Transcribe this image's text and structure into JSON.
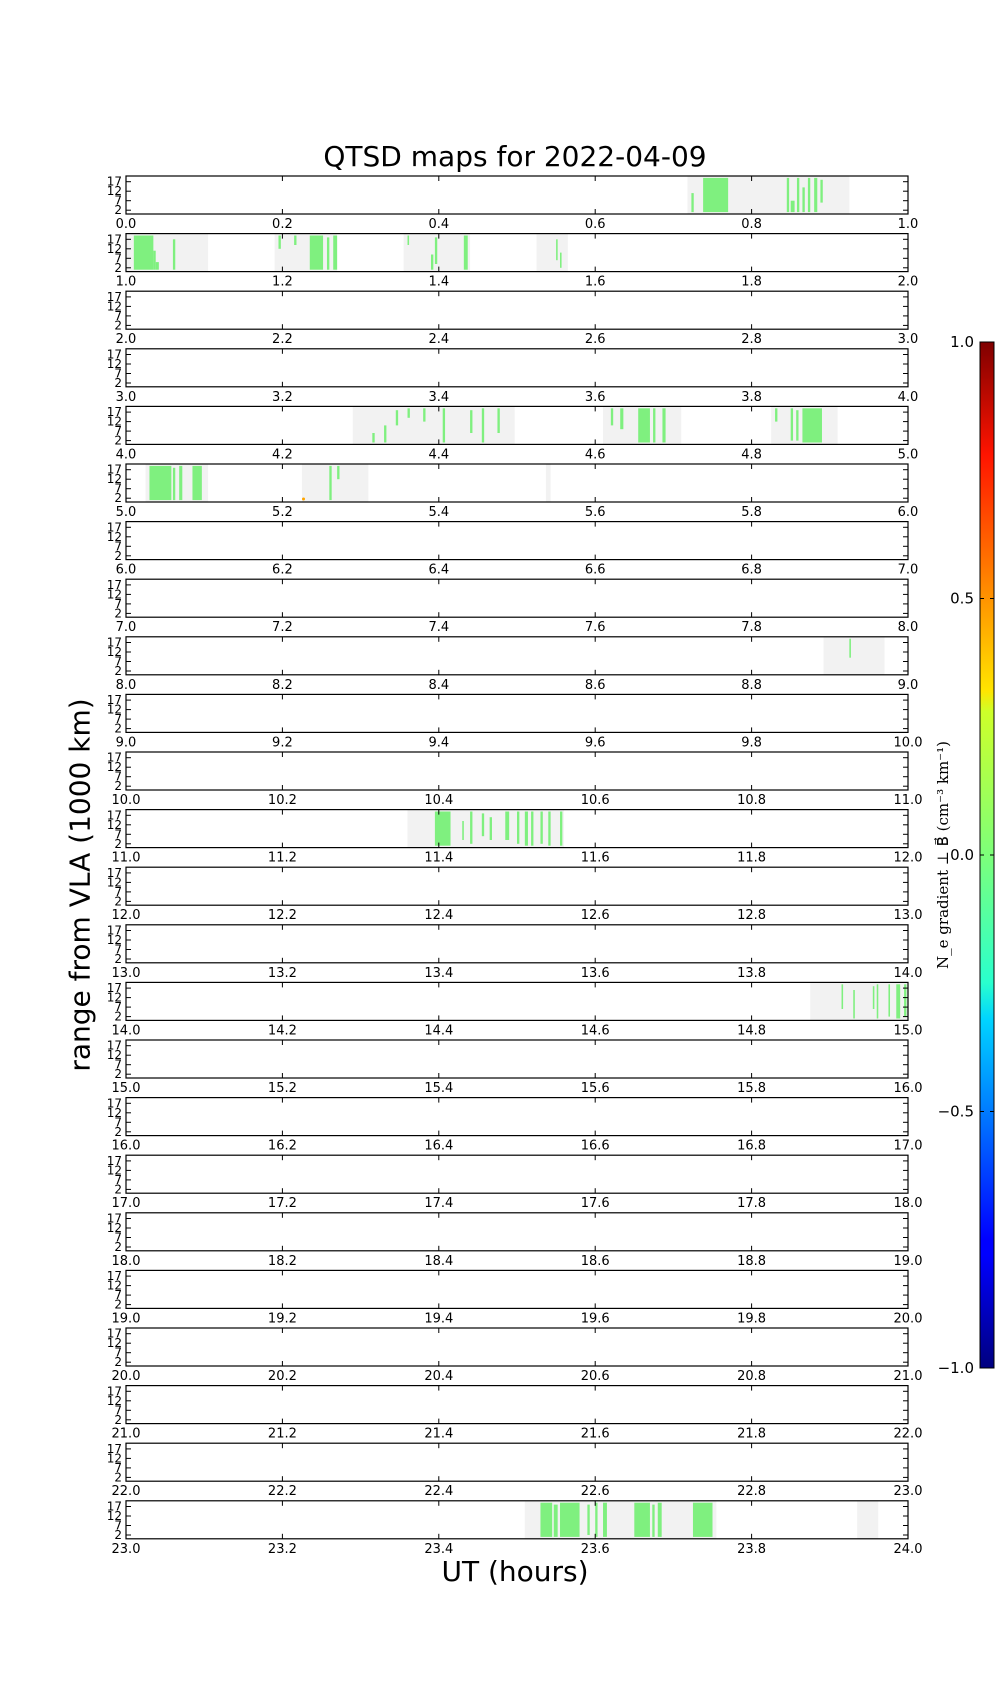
{
  "title": "QTSD maps for 2022-04-09",
  "chart_data": {
    "type": "heatmap",
    "title": "QTSD maps for 2022-04-09",
    "xlabel": "UT (hours)",
    "ylabel": "range from VLA (1000 km)",
    "y_ticks": [
      "17",
      "12",
      "7",
      "2"
    ],
    "ylim": [
      0,
      20
    ],
    "colors": {
      "coverage": "#f2f2f2",
      "near_zero": "#7ff07f",
      "dot": "#ffa500"
    },
    "colorbar": {
      "label": "N_e gradient ⊥ B⃗ (cm⁻³ km⁻¹)",
      "vmin": -1.0,
      "vmax": 1.0,
      "ticks": [
        "1.0",
        "0.5",
        "0.0",
        "−0.5",
        "−1.0"
      ]
    },
    "panels": [
      {
        "start": 0,
        "end": 1,
        "ticks": [
          "0.0",
          "0.2",
          "0.4",
          "0.6",
          "0.8",
          "1.0"
        ],
        "coverage": [
          [
            0.718,
            0.925
          ]
        ],
        "segments": [
          [
            0.723,
            0.726,
            0.05,
            0.55
          ],
          [
            0.738,
            0.77,
            0.05,
            0.95
          ],
          [
            0.845,
            0.848,
            0.05,
            0.95
          ],
          [
            0.85,
            0.855,
            0.05,
            0.35
          ],
          [
            0.858,
            0.861,
            0.05,
            0.95
          ],
          [
            0.865,
            0.868,
            0.05,
            0.7
          ],
          [
            0.872,
            0.875,
            0.05,
            0.95
          ],
          [
            0.88,
            0.884,
            0.05,
            0.95
          ],
          [
            0.888,
            0.891,
            0.3,
            0.9
          ]
        ]
      },
      {
        "start": 1,
        "end": 2,
        "ticks": [
          "1.0",
          "1.2",
          "1.4",
          "1.6",
          "1.8",
          "2.0"
        ],
        "coverage": [
          [
            1.0,
            1.105
          ],
          [
            1.19,
            1.27
          ],
          [
            1.355,
            1.44
          ],
          [
            1.525,
            1.565
          ]
        ],
        "segments": [
          [
            1.01,
            1.035,
            0.05,
            0.95
          ],
          [
            1.035,
            1.038,
            0.05,
            0.55
          ],
          [
            1.038,
            1.042,
            0.05,
            0.25
          ],
          [
            1.06,
            1.063,
            0.05,
            0.85
          ],
          [
            1.195,
            1.198,
            0.6,
            0.95
          ],
          [
            1.215,
            1.218,
            0.7,
            0.95
          ],
          [
            1.235,
            1.252,
            0.05,
            0.95
          ],
          [
            1.257,
            1.26,
            0.05,
            0.9
          ],
          [
            1.265,
            1.27,
            0.05,
            0.95
          ],
          [
            1.36,
            1.362,
            0.7,
            0.95
          ],
          [
            1.39,
            1.393,
            0.05,
            0.45
          ],
          [
            1.395,
            1.398,
            0.2,
            0.9
          ],
          [
            1.432,
            1.437,
            0.05,
            0.95
          ],
          [
            1.55,
            1.552,
            0.3,
            0.85
          ],
          [
            1.555,
            1.557,
            0.1,
            0.5
          ]
        ]
      },
      {
        "start": 2,
        "end": 3,
        "ticks": [
          "2.0",
          "2.2",
          "2.4",
          "2.6",
          "2.8",
          "3.0"
        ],
        "coverage": [],
        "segments": []
      },
      {
        "start": 3,
        "end": 4,
        "ticks": [
          "3.0",
          "3.2",
          "3.4",
          "3.6",
          "3.8",
          "4.0"
        ],
        "coverage": [],
        "segments": []
      },
      {
        "start": 4,
        "end": 5,
        "ticks": [
          "4.0",
          "4.2",
          "4.4",
          "4.6",
          "4.8",
          "5.0"
        ],
        "coverage": [
          [
            4.29,
            4.497
          ],
          [
            4.61,
            4.71
          ],
          [
            4.825,
            4.91
          ]
        ],
        "segments": [
          [
            4.315,
            4.318,
            0.05,
            0.3
          ],
          [
            4.33,
            4.333,
            0.05,
            0.5
          ],
          [
            4.345,
            4.348,
            0.5,
            0.9
          ],
          [
            4.36,
            4.363,
            0.7,
            0.95
          ],
          [
            4.38,
            4.383,
            0.6,
            0.95
          ],
          [
            4.405,
            4.408,
            0.05,
            0.95
          ],
          [
            4.44,
            4.443,
            0.3,
            0.9
          ],
          [
            4.455,
            4.458,
            0.05,
            0.95
          ],
          [
            4.475,
            4.478,
            0.3,
            0.95
          ],
          [
            4.62,
            4.623,
            0.5,
            0.95
          ],
          [
            4.632,
            4.636,
            0.4,
            0.95
          ],
          [
            4.655,
            4.67,
            0.05,
            0.95
          ],
          [
            4.674,
            4.677,
            0.05,
            0.95
          ],
          [
            4.686,
            4.69,
            0.05,
            0.95
          ],
          [
            4.83,
            4.833,
            0.6,
            0.95
          ],
          [
            4.85,
            4.853,
            0.1,
            0.95
          ],
          [
            4.857,
            4.86,
            0.1,
            0.9
          ],
          [
            4.865,
            4.89,
            0.05,
            0.95
          ]
        ]
      },
      {
        "start": 5,
        "end": 6,
        "ticks": [
          "5.0",
          "5.2",
          "5.4",
          "5.6",
          "5.8",
          "6.0"
        ],
        "coverage": [
          [
            5.025,
            5.105
          ],
          [
            5.225,
            5.31
          ],
          [
            5.537,
            5.543
          ]
        ],
        "segments": [
          [
            5.03,
            5.058,
            0.05,
            0.95
          ],
          [
            5.06,
            5.063,
            0.05,
            0.9
          ],
          [
            5.068,
            5.072,
            0.05,
            0.95
          ],
          [
            5.085,
            5.097,
            0.05,
            0.95
          ],
          [
            5.26,
            5.263,
            0.05,
            0.95
          ],
          [
            5.27,
            5.273,
            0.6,
            0.95
          ]
        ],
        "dots": [
          [
            5.227,
            0.08
          ]
        ]
      },
      {
        "start": 6,
        "end": 7,
        "ticks": [
          "6.0",
          "6.2",
          "6.4",
          "6.6",
          "6.8",
          "7.0"
        ],
        "coverage": [],
        "segments": []
      },
      {
        "start": 7,
        "end": 8,
        "ticks": [
          "7.0",
          "7.2",
          "7.4",
          "7.6",
          "7.8",
          "8.0"
        ],
        "coverage": [],
        "segments": []
      },
      {
        "start": 8,
        "end": 9,
        "ticks": [
          "8.0",
          "8.2",
          "8.4",
          "8.6",
          "8.8",
          "9.0"
        ],
        "coverage": [
          [
            8.892,
            8.97
          ]
        ],
        "segments": [
          [
            8.925,
            8.927,
            0.45,
            0.95
          ]
        ]
      },
      {
        "start": 9,
        "end": 10,
        "ticks": [
          "9.0",
          "9.2",
          "9.4",
          "9.6",
          "9.8",
          "10.0"
        ],
        "coverage": [],
        "segments": []
      },
      {
        "start": 10,
        "end": 11,
        "ticks": [
          "10.0",
          "10.2",
          "10.4",
          "10.6",
          "10.8",
          "11.0"
        ],
        "coverage": [],
        "segments": []
      },
      {
        "start": 11,
        "end": 12,
        "ticks": [
          "11.0",
          "11.2",
          "11.4",
          "11.6",
          "11.8",
          "12.0"
        ],
        "coverage": [
          [
            11.36,
            11.56
          ]
        ],
        "segments": [
          [
            11.395,
            11.415,
            0.05,
            0.95
          ],
          [
            11.43,
            11.432,
            0.2,
            0.7
          ],
          [
            11.44,
            11.443,
            0.1,
            0.95
          ],
          [
            11.455,
            11.458,
            0.3,
            0.9
          ],
          [
            11.465,
            11.468,
            0.2,
            0.8
          ],
          [
            11.485,
            11.49,
            0.2,
            0.95
          ],
          [
            11.5,
            11.503,
            0.1,
            0.95
          ],
          [
            11.51,
            11.514,
            0.05,
            0.95
          ],
          [
            11.518,
            11.521,
            0.05,
            0.95
          ],
          [
            11.53,
            11.533,
            0.1,
            0.95
          ],
          [
            11.54,
            11.543,
            0.05,
            0.95
          ],
          [
            11.555,
            11.558,
            0.05,
            0.95
          ]
        ]
      },
      {
        "start": 12,
        "end": 13,
        "ticks": [
          "12.0",
          "12.2",
          "12.4",
          "12.6",
          "12.8",
          "13.0"
        ],
        "coverage": [],
        "segments": []
      },
      {
        "start": 13,
        "end": 14,
        "ticks": [
          "13.0",
          "13.2",
          "13.4",
          "13.6",
          "13.8",
          "14.0"
        ],
        "coverage": [],
        "segments": []
      },
      {
        "start": 14,
        "end": 15,
        "ticks": [
          "14.0",
          "14.2",
          "14.4",
          "14.6",
          "14.8",
          "15.0"
        ],
        "coverage": [
          [
            14.875,
            15.0
          ]
        ],
        "segments": [
          [
            14.915,
            14.917,
            0.3,
            0.95
          ],
          [
            14.93,
            14.932,
            0.05,
            0.8
          ],
          [
            14.955,
            14.957,
            0.3,
            0.9
          ],
          [
            14.96,
            14.962,
            0.05,
            0.95
          ],
          [
            14.975,
            14.977,
            0.1,
            0.95
          ],
          [
            14.985,
            14.99,
            0.05,
            0.95
          ],
          [
            14.995,
            14.998,
            0.1,
            0.95
          ]
        ]
      },
      {
        "start": 15,
        "end": 16,
        "ticks": [
          "15.0",
          "15.2",
          "15.4",
          "15.6",
          "15.8",
          "16.0"
        ],
        "coverage": [],
        "segments": []
      },
      {
        "start": 16,
        "end": 17,
        "ticks": [
          "16.0",
          "16.2",
          "16.4",
          "16.6",
          "16.8",
          "17.0"
        ],
        "coverage": [],
        "segments": []
      },
      {
        "start": 17,
        "end": 18,
        "ticks": [
          "17.0",
          "17.2",
          "17.4",
          "17.6",
          "17.8",
          "18.0"
        ],
        "coverage": [],
        "segments": []
      },
      {
        "start": 18,
        "end": 19,
        "ticks": [
          "18.0",
          "18.2",
          "18.4",
          "18.6",
          "18.8",
          "19.0"
        ],
        "coverage": [],
        "segments": []
      },
      {
        "start": 19,
        "end": 20,
        "ticks": [
          "19.0",
          "19.2",
          "19.4",
          "19.6",
          "19.8",
          "20.0"
        ],
        "coverage": [],
        "segments": []
      },
      {
        "start": 20,
        "end": 21,
        "ticks": [
          "20.0",
          "20.2",
          "20.4",
          "20.6",
          "20.8",
          "21.0"
        ],
        "coverage": [],
        "segments": []
      },
      {
        "start": 21,
        "end": 22,
        "ticks": [
          "21.0",
          "21.2",
          "21.4",
          "21.6",
          "21.8",
          "22.0"
        ],
        "coverage": [],
        "segments": []
      },
      {
        "start": 22,
        "end": 23,
        "ticks": [
          "22.0",
          "22.2",
          "22.4",
          "22.6",
          "22.8",
          "23.0"
        ],
        "coverage": [],
        "segments": []
      },
      {
        "start": 23,
        "end": 24,
        "ticks": [
          "23.0",
          "23.2",
          "23.4",
          "23.6",
          "23.8",
          "24.0"
        ],
        "coverage": [
          [
            23.51,
            23.755
          ],
          [
            23.935,
            23.962
          ]
        ],
        "segments": [
          [
            23.53,
            23.545,
            0.05,
            0.95
          ],
          [
            23.547,
            23.552,
            0.05,
            0.9
          ],
          [
            23.555,
            23.58,
            0.05,
            0.95
          ],
          [
            23.59,
            23.593,
            0.1,
            0.9
          ],
          [
            23.6,
            23.603,
            0.05,
            0.95
          ],
          [
            23.61,
            23.615,
            0.05,
            0.95
          ],
          [
            23.65,
            23.67,
            0.05,
            0.95
          ],
          [
            23.673,
            23.676,
            0.05,
            0.9
          ],
          [
            23.68,
            23.685,
            0.05,
            0.95
          ],
          [
            23.725,
            23.75,
            0.05,
            0.95
          ]
        ]
      }
    ]
  }
}
